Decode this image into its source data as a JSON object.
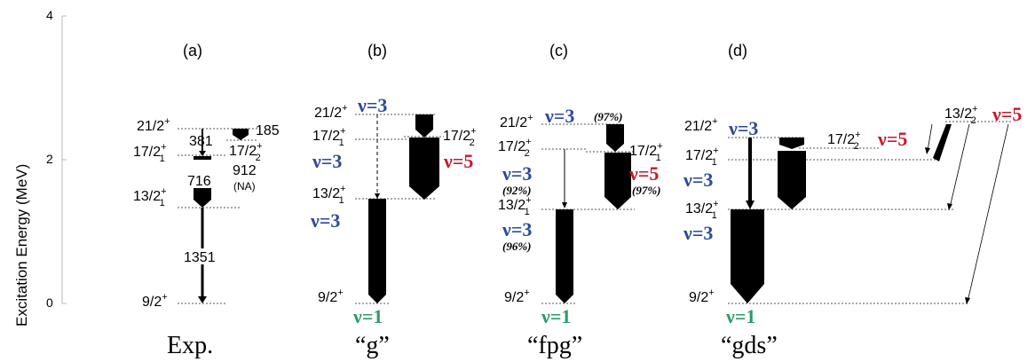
{
  "axis": {
    "ylabel": "Excitation Energy (MeV)",
    "ticks": [
      "0",
      "2",
      "4"
    ]
  },
  "colors": {
    "blue": "#2b4a9b",
    "red": "#c8182c",
    "green": "#2e9a6a",
    "black": "#000000"
  },
  "panels": {
    "a": {
      "label": "(a)",
      "caption": "Exp.",
      "levels": {
        "l921": "21/2",
        "l921_sup": "+",
        "l171": "17/2",
        "l171_sup": "+",
        "l171_sub": "1",
        "l172": "17/2",
        "l172_sup": "+",
        "l172_sub": "2",
        "l131": "13/2",
        "l131_sup": "+",
        "l131_sub": "1",
        "l9": "9/2",
        "l9_sup": "+"
      },
      "transitions": {
        "t381": "381",
        "t185": "185",
        "t716": "716",
        "t912": "912",
        "t912_note": "(NA)",
        "t1351": "1351"
      }
    },
    "b": {
      "label": "(b)",
      "caption": "“g”",
      "levels": {
        "l21": "21/2",
        "l21_sup": "+",
        "l171": "17/2",
        "l171_sup": "+",
        "l171_sub": "1",
        "l172": "17/2",
        "l172_sup": "+",
        "l172_sub": "2",
        "l131": "13/2",
        "l131_sup": "+",
        "l131_sub": "1",
        "l9": "9/2",
        "l9_sup": "+"
      },
      "seniority": {
        "s21": "ν=3",
        "s171": "ν=3",
        "s172": "ν=5",
        "s131": "ν=3",
        "s9": "ν=1"
      }
    },
    "c": {
      "label": "(c)",
      "caption": "“fpg”",
      "levels": {
        "l21": "21/2",
        "l21_sup": "+",
        "l172": "17/2",
        "l172_sup": "+",
        "l172_sub": "2",
        "l171": "17/2",
        "l171_sup": "+",
        "l171_sub": "1",
        "l131": "13/2",
        "l131_sup": "+",
        "l131_sub": "1",
        "l9": "9/2",
        "l9_sup": "+"
      },
      "seniority": {
        "s21": "ν=3",
        "s21_pct": "(97%)",
        "s172": "ν=3",
        "s172_pct": "(92%)",
        "s171": "ν=5",
        "s171_pct": "(97%)",
        "s131": "ν=3",
        "s131_pct": "(96%)",
        "s9": "ν=1"
      }
    },
    "d": {
      "label": "(d)",
      "caption": "“gds”",
      "levels": {
        "l21": "21/2",
        "l21_sup": "+",
        "l171": "17/2",
        "l171_sup": "+",
        "l171_sub": "1",
        "l131": "13/2",
        "l131_sup": "+",
        "l131_sub": "1",
        "l9": "9/2",
        "l9_sup": "+",
        "l172": "17/2",
        "l172_sup": "+",
        "l172_sub": "2",
        "l132": "13/2",
        "l132_sup": "+",
        "l132_sub": "2"
      },
      "seniority": {
        "s21": "ν=3",
        "s171": "ν=3",
        "s131": "ν=3",
        "s9": "ν=1",
        "s172": "ν=5",
        "s132": "ν=5"
      }
    }
  }
}
